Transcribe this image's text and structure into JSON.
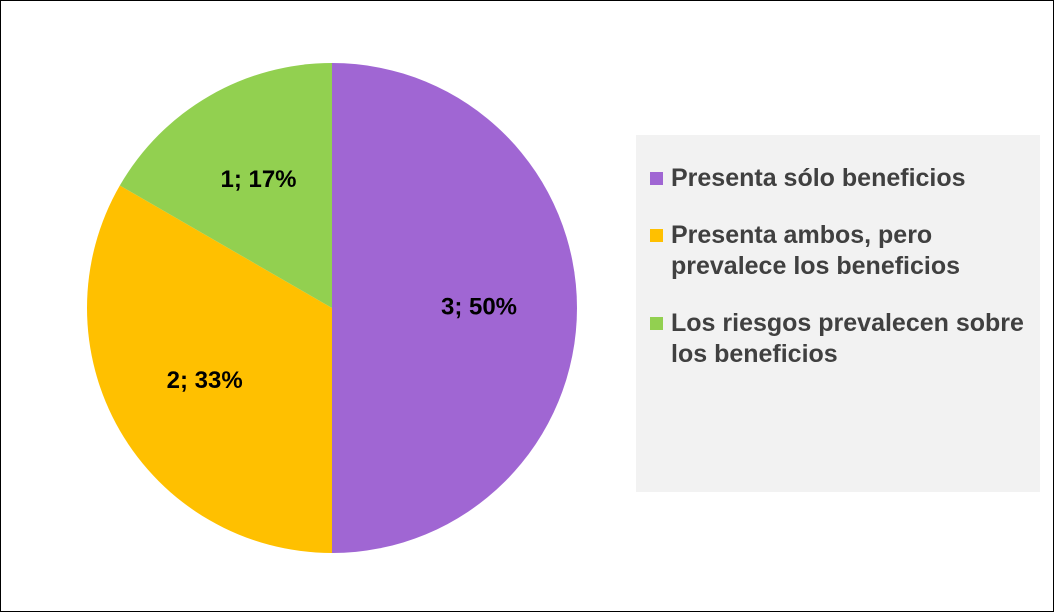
{
  "chart_data": {
    "type": "pie",
    "categories": [
      "Presenta sólo beneficios",
      "Presenta ambos, pero prevalece los beneficios",
      "Los riesgos prevalecen sobre los beneficios"
    ],
    "values": [
      3,
      2,
      1
    ],
    "value_labels": [
      "3; 50%",
      "2; 33%",
      "1; 17%"
    ],
    "colors": [
      "#a066d3",
      "#ffc000",
      "#92d050"
    ],
    "legend": "right"
  }
}
